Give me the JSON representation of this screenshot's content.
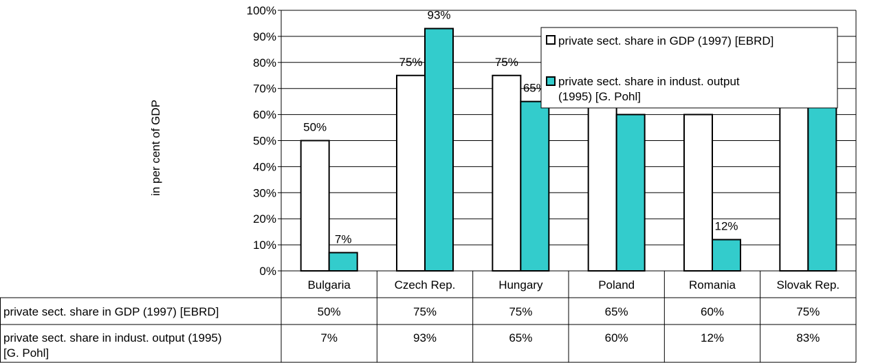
{
  "chart_data": {
    "type": "bar",
    "categories": [
      "Bulgaria",
      "Czech Rep.",
      "Hungary",
      "Poland",
      "Romania",
      "Slovak Rep."
    ],
    "series": [
      {
        "name": "private sect. share in GDP (1997) [EBRD]",
        "table_label": "private sect. share in GDP (1997) [EBRD]",
        "values": [
          50,
          75,
          75,
          65,
          60,
          75
        ],
        "value_labels": [
          "50%",
          "75%",
          "75%",
          "65%",
          "60%",
          "75%"
        ],
        "color": "#ffffff"
      },
      {
        "name": "private sect. share in indust. output (1995) [G. Pohl]",
        "table_label": "private sect. share in indust. output (1995) [G. Pohl]",
        "values": [
          7,
          93,
          65,
          60,
          12,
          83
        ],
        "value_labels": [
          "7%",
          "93%",
          "65%",
          "60%",
          "12%",
          "83%"
        ],
        "color": "#33cccc"
      }
    ],
    "ylabel": "in per cent of GDP",
    "ylim": [
      0,
      100
    ],
    "yticks": [
      "0%",
      "10%",
      "20%",
      "30%",
      "40%",
      "50%",
      "60%",
      "70%",
      "80%",
      "90%",
      "100%"
    ],
    "grid": true,
    "legend_position": "top-right, inside plot",
    "data_table": true
  }
}
